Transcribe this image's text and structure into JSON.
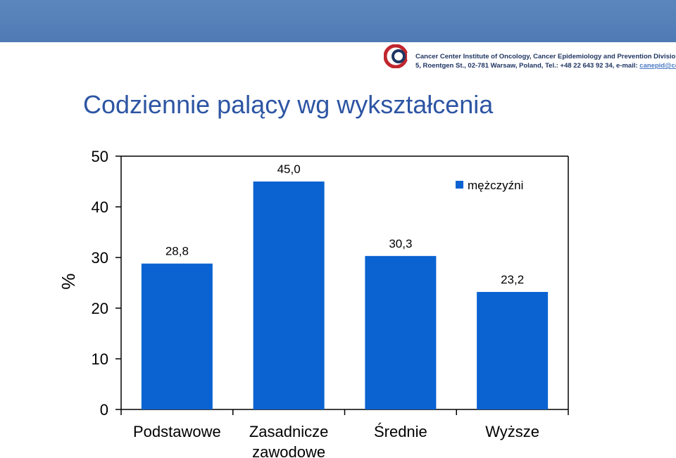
{
  "header": {
    "institute": "Cancer Center Institute of Oncology, Cancer Epidemiology and Prevention Division",
    "address": "5, Roentgen St., 02-781 Warsaw, Poland, Tel.: +48 22 643 92 34, e-mail: ",
    "email": "canepid@coi.waw.pl",
    "logo_name": "cancer-center-logo"
  },
  "title": "Codziennie palący wg wykształcenia",
  "colors": {
    "top_bar": "#5581b9",
    "bar": "#0a63d1",
    "title": "#2d55a3"
  },
  "chart_data": {
    "type": "bar",
    "title": "Codziennie palący wg wykształcenia",
    "categories": [
      "Podstawowe",
      "Zasadnicze zawodowe",
      "Średnie",
      "Wyższe"
    ],
    "category_lines": [
      [
        "Podstawowe"
      ],
      [
        "Zasadnicze",
        "zawodowe"
      ],
      [
        "Średnie"
      ],
      [
        "Wyższe"
      ]
    ],
    "series": [
      {
        "name": "mężczyźni",
        "values": [
          28.8,
          45.0,
          30.3,
          23.2
        ]
      }
    ],
    "data_labels": [
      "28,8",
      "45,0",
      "30,3",
      "23,2"
    ],
    "ylabel": "%",
    "xlabel": "",
    "ylim": [
      0,
      50
    ],
    "yticks": [
      0,
      10,
      20,
      30,
      40,
      50
    ],
    "grid": false,
    "legend": "top-right"
  }
}
